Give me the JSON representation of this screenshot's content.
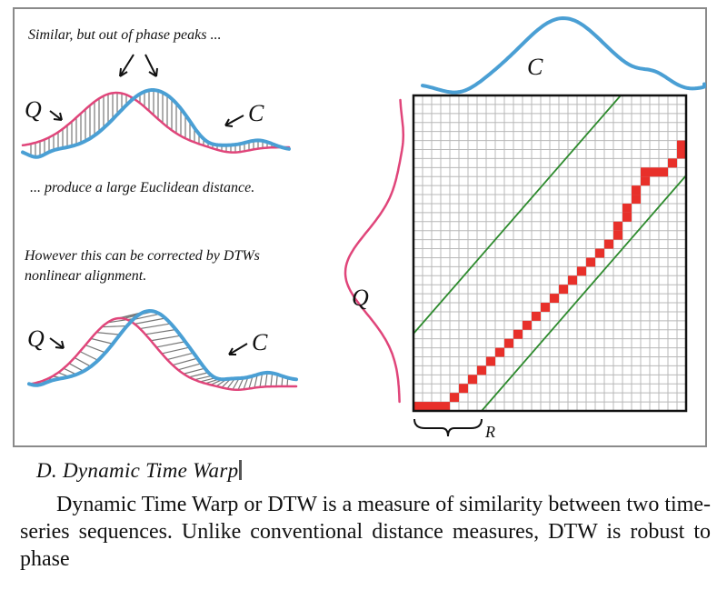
{
  "figure": {
    "top_caption": "Similar, but out of phase peaks ...",
    "mid_caption": "... produce a large Euclidean distance.",
    "correction_line1": "However this can be corrected by DTWs",
    "correction_line2": "nonlinear alignment.",
    "label_q": "Q",
    "label_c": "C",
    "label_r": "R",
    "colors": {
      "series_q": "#e0457a",
      "series_c": "#4a9fd4",
      "warp_path": "#e8302a",
      "band": "#2e8b2e",
      "grid": "#b8b8b8",
      "hatch": "#777777"
    },
    "grid_cells": 30
  },
  "heading": "D.  Dynamic Time Warp",
  "paragraph": "Dynamic Time Warp or DTW is a measure of similarity between two time-series sequences. Unlike conventional distance measures, DTW is robust to phase"
}
